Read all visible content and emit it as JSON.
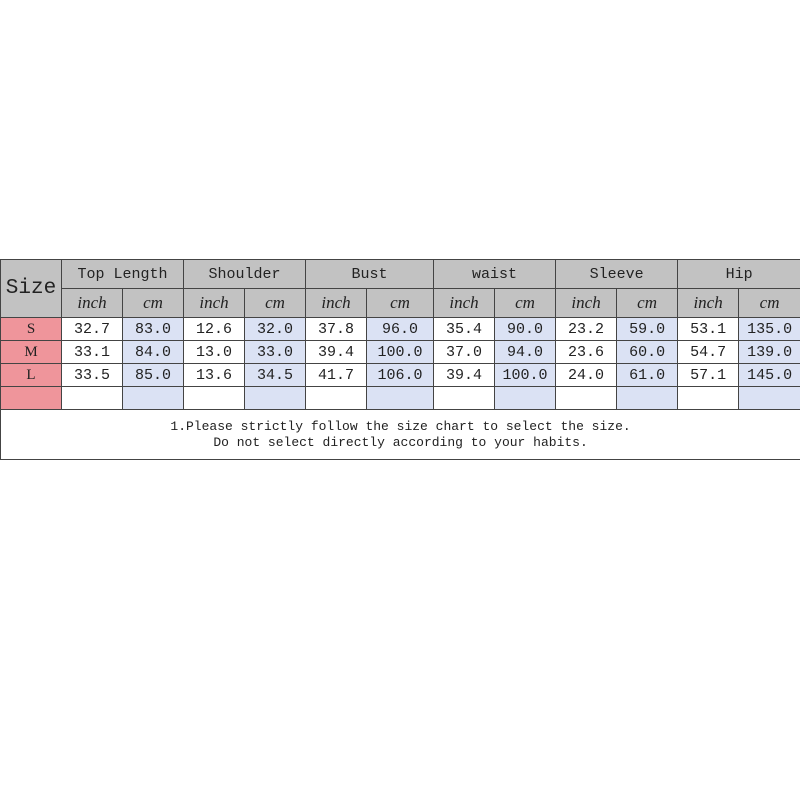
{
  "header": {
    "size": "Size",
    "groups": [
      "Top Length",
      "Shoulder",
      "Bust",
      "waist",
      "Sleeve",
      "Hip"
    ],
    "units": [
      "inch",
      "cm"
    ]
  },
  "rows": [
    {
      "size": "S",
      "values": [
        "32.7",
        "83.0",
        "12.6",
        "32.0",
        "37.8",
        "96.0",
        "35.4",
        "90.0",
        "23.2",
        "59.0",
        "53.1",
        "135.0"
      ]
    },
    {
      "size": "M",
      "values": [
        "33.1",
        "84.0",
        "13.0",
        "33.0",
        "39.4",
        "100.0",
        "37.0",
        "94.0",
        "23.6",
        "60.0",
        "54.7",
        "139.0"
      ]
    },
    {
      "size": "L",
      "values": [
        "33.5",
        "85.0",
        "13.6",
        "34.5",
        "41.7",
        "106.0",
        "39.4",
        "100.0",
        "24.0",
        "61.0",
        "57.1",
        "145.0"
      ]
    }
  ],
  "note": [
    "1.Please strictly follow the size chart to select the size.",
    "Do not select directly according to your habits."
  ],
  "colors": {
    "header": "#c2c2c2",
    "size_cell": "#ef959b",
    "cm_cell": "#dbe2f4"
  }
}
